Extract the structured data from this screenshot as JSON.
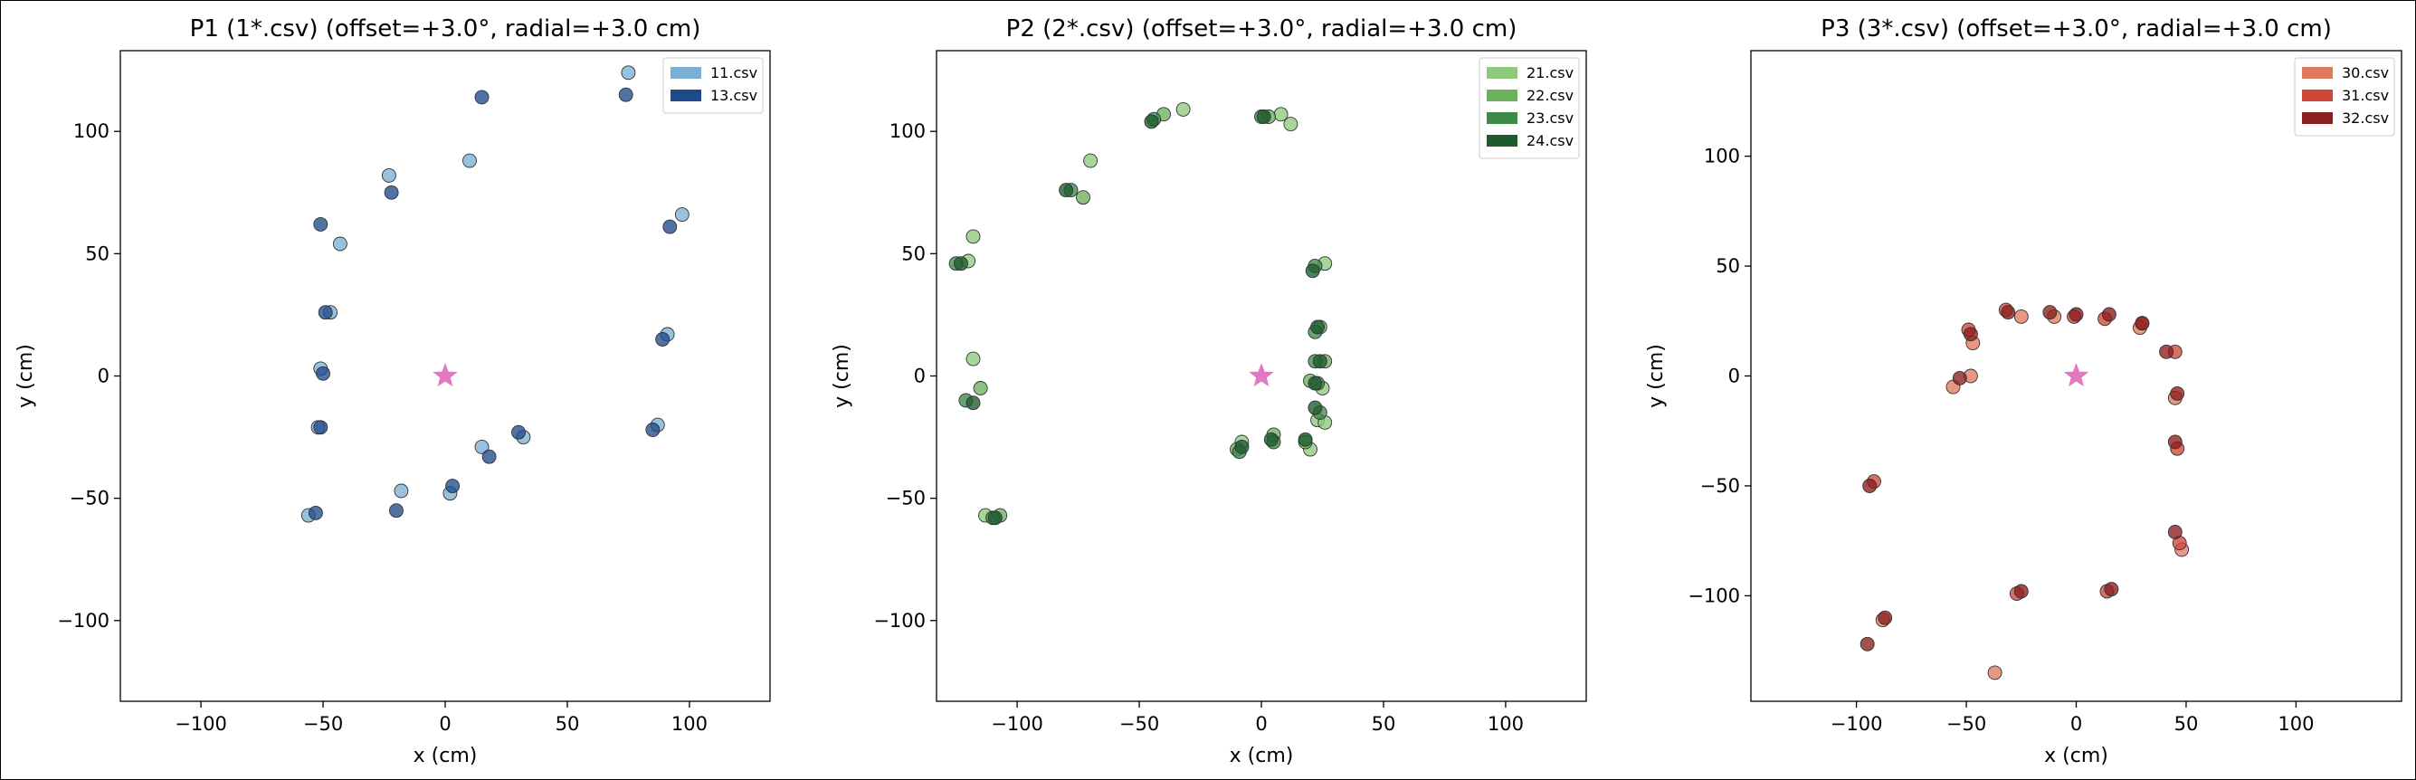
{
  "chart_data": [
    {
      "type": "scatter",
      "title": "P1 (1*.csv) (offset=+3.0°, radial=+3.0 cm)",
      "xlabel": "x (cm)",
      "ylabel": "y (cm)",
      "xlim": [
        -133,
        133
      ],
      "ylim": [
        -133,
        133
      ],
      "xticks": [
        -100,
        -50,
        0,
        50,
        100
      ],
      "yticks": [
        -100,
        -50,
        0,
        50,
        100
      ],
      "legend_position": "top-right",
      "center_marker": {
        "x": 0,
        "y": 0,
        "color": "#e377c2"
      },
      "series": [
        {
          "name": "11.csv",
          "color": "#7bafd4",
          "points": [
            [
              75,
              124
            ],
            [
              10,
              88
            ],
            [
              -23,
              82
            ],
            [
              -43,
              54
            ],
            [
              97,
              66
            ],
            [
              -47,
              26
            ],
            [
              91,
              17
            ],
            [
              -51,
              3
            ],
            [
              -52,
              -21
            ],
            [
              87,
              -20
            ],
            [
              15,
              -29
            ],
            [
              32,
              -25
            ],
            [
              -18,
              -47
            ],
            [
              2,
              -48
            ],
            [
              -56,
              -57
            ]
          ]
        },
        {
          "name": "13.csv",
          "color": "#1f4a8a",
          "points": [
            [
              15,
              114
            ],
            [
              74,
              115
            ],
            [
              -22,
              75
            ],
            [
              -51,
              62
            ],
            [
              92,
              61
            ],
            [
              -49,
              26
            ],
            [
              89,
              15
            ],
            [
              -50,
              1
            ],
            [
              -51,
              -21
            ],
            [
              85,
              -22
            ],
            [
              30,
              -23
            ],
            [
              18,
              -33
            ],
            [
              3,
              -45
            ],
            [
              -20,
              -55
            ],
            [
              -53,
              -56
            ]
          ]
        }
      ]
    },
    {
      "type": "scatter",
      "title": "P2 (2*.csv) (offset=+3.0°, radial=+3.0 cm)",
      "xlabel": "x (cm)",
      "ylabel": "y (cm)",
      "xlim": [
        -133,
        133
      ],
      "ylim": [
        -133,
        133
      ],
      "xticks": [
        -100,
        -50,
        0,
        50,
        100
      ],
      "yticks": [
        -100,
        -50,
        0,
        50,
        100
      ],
      "legend_position": "top-right",
      "center_marker": {
        "x": 0,
        "y": 0,
        "color": "#e377c2"
      },
      "series": [
        {
          "name": "21.csv",
          "color": "#8fc97e",
          "points": [
            [
              -32,
              109
            ],
            [
              -70,
              88
            ],
            [
              -118,
              57
            ],
            [
              -120,
              47
            ],
            [
              -118,
              7
            ],
            [
              8,
              107
            ],
            [
              12,
              103
            ],
            [
              26,
              46
            ],
            [
              23,
              -18
            ],
            [
              26,
              -19
            ],
            [
              25,
              -5
            ],
            [
              -113,
              -57
            ],
            [
              -8,
              -27
            ],
            [
              20,
              -30
            ]
          ]
        },
        {
          "name": "22.csv",
          "color": "#6ab15e",
          "points": [
            [
              -40,
              107
            ],
            [
              -73,
              73
            ],
            [
              -115,
              -5
            ],
            [
              3,
              106
            ],
            [
              24,
              20
            ],
            [
              26,
              6
            ],
            [
              20,
              -2
            ],
            [
              18,
              -27
            ],
            [
              5,
              -24
            ],
            [
              -10,
              -30
            ],
            [
              -107,
              -57
            ]
          ]
        },
        {
          "name": "23.csv",
          "color": "#3c8a4a",
          "points": [
            [
              -44,
              105
            ],
            [
              -78,
              76
            ],
            [
              -125,
              46
            ],
            [
              -121,
              -10
            ],
            [
              0,
              106
            ],
            [
              22,
              45
            ],
            [
              22,
              18
            ],
            [
              22,
              6
            ],
            [
              23,
              -3
            ],
            [
              24,
              -15
            ],
            [
              5,
              -27
            ],
            [
              -9,
              -31
            ],
            [
              -110,
              -58
            ]
          ]
        },
        {
          "name": "24.csv",
          "color": "#1d5a2e",
          "points": [
            [
              -45,
              104
            ],
            [
              -80,
              76
            ],
            [
              -123,
              46
            ],
            [
              -118,
              -11
            ],
            [
              1,
              106
            ],
            [
              21,
              43
            ],
            [
              23,
              20
            ],
            [
              24,
              6
            ],
            [
              22,
              -3
            ],
            [
              22,
              -13
            ],
            [
              18,
              -26
            ],
            [
              4,
              -26
            ],
            [
              -8,
              -29
            ],
            [
              -109,
              -58
            ]
          ]
        }
      ]
    },
    {
      "type": "scatter",
      "title": "P3 (3*.csv) (offset=+3.0°, radial=+3.0 cm)",
      "xlabel": "x (cm)",
      "ylabel": "y (cm)",
      "xlim": [
        -148,
        148
      ],
      "ylim": [
        -148,
        148
      ],
      "xticks": [
        -100,
        -50,
        0,
        50,
        100
      ],
      "yticks": [
        -100,
        -50,
        0,
        50,
        100
      ],
      "legend_position": "top-right",
      "center_marker": {
        "x": 0,
        "y": 0,
        "color": "#e377c2"
      },
      "series": [
        {
          "name": "30.csv",
          "color": "#e07a5f",
          "points": [
            [
              -25,
              27
            ],
            [
              -10,
              27
            ],
            [
              -47,
              15
            ],
            [
              -56,
              -5
            ],
            [
              -48,
              0
            ],
            [
              29,
              22
            ],
            [
              45,
              -10
            ],
            [
              48,
              -79
            ],
            [
              -37,
              -135
            ],
            [
              -88,
              -111
            ]
          ]
        },
        {
          "name": "31.csv",
          "color": "#d0473a",
          "points": [
            [
              -32,
              30
            ],
            [
              -1,
              27
            ],
            [
              13,
              26
            ],
            [
              -49,
              21
            ],
            [
              30,
              24
            ],
            [
              45,
              11
            ],
            [
              46,
              -33
            ],
            [
              47,
              -76
            ],
            [
              -27,
              -99
            ],
            [
              14,
              -98
            ],
            [
              -92,
              -48
            ]
          ]
        },
        {
          "name": "32.csv",
          "color": "#8b1e1e",
          "points": [
            [
              -31,
              29
            ],
            [
              -12,
              29
            ],
            [
              0,
              28
            ],
            [
              15,
              28
            ],
            [
              -48,
              19
            ],
            [
              -53,
              -1
            ],
            [
              30,
              24
            ],
            [
              41,
              11
            ],
            [
              46,
              -8
            ],
            [
              45,
              -30
            ],
            [
              45,
              -71
            ],
            [
              -25,
              -98
            ],
            [
              16,
              -97
            ],
            [
              -94,
              -50
            ],
            [
              -87,
              -110
            ],
            [
              -95,
              -122
            ]
          ]
        }
      ]
    }
  ]
}
